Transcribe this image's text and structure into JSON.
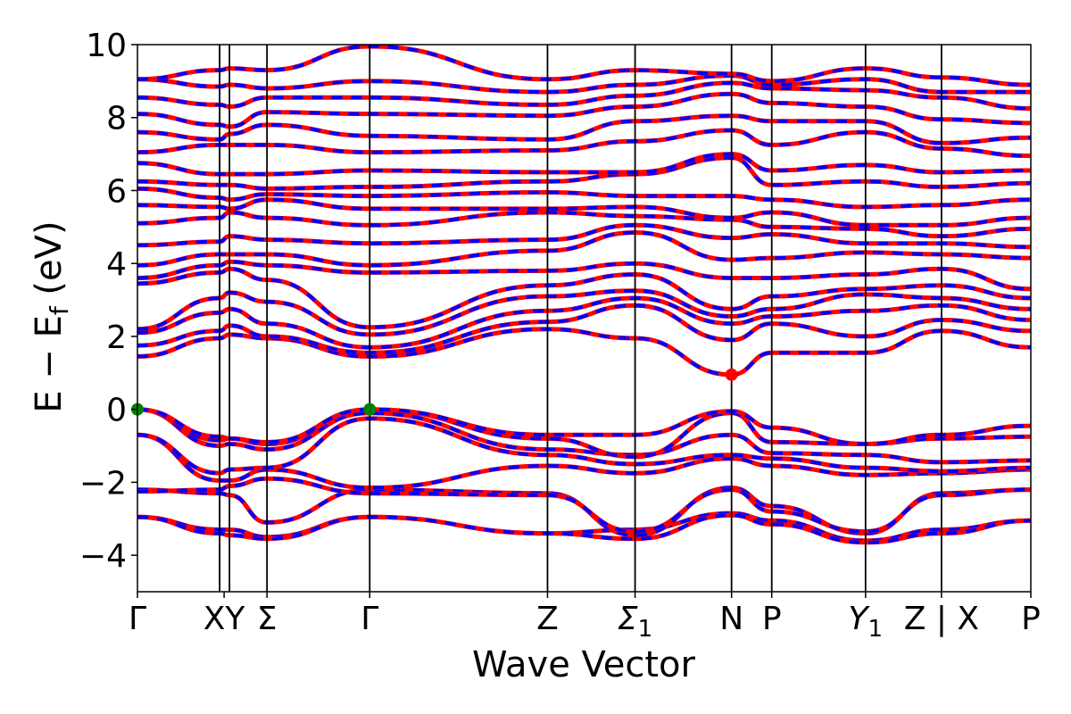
{
  "chart_data": {
    "type": "line",
    "xlabel": "Wave Vector",
    "ylabel": "E − E",
    "ylabel_sub": "f",
    "ylabel_unit": " (eV)",
    "ylim": [
      -5,
      10
    ],
    "yticks": [
      -4,
      -2,
      0,
      2,
      4,
      6,
      8,
      10
    ],
    "ytick_labels": [
      "−4",
      "−2",
      "0",
      "2",
      "4",
      "6",
      "8",
      "10"
    ],
    "kpoint_positions": [
      0,
      0.092,
      0.103,
      0.145,
      0.26,
      0.459,
      0.557,
      0.665,
      0.71,
      0.815,
      0.9,
      1.0
    ],
    "kpoint_ticks": [
      {
        "x": 0,
        "label": "Γ"
      },
      {
        "x": 0.097,
        "label": "XY"
      },
      {
        "x": 0.145,
        "label": "Σ"
      },
      {
        "x": 0.26,
        "label": "Γ"
      },
      {
        "x": 0.459,
        "label": "Z"
      },
      {
        "x": 0.557,
        "label": "Σ",
        "sub": "1"
      },
      {
        "x": 0.665,
        "label": "N"
      },
      {
        "x": 0.71,
        "label": "P"
      },
      {
        "x": 0.815,
        "label": "Y",
        "sub": "1"
      },
      {
        "x": 0.9,
        "label": "Z | X"
      },
      {
        "x": 1.0,
        "label": "P"
      }
    ],
    "colors": {
      "spin_up": "#ff0000",
      "spin_down": "#0000ff",
      "vbm": "#008000",
      "cbm": "#ff0000"
    },
    "markers": [
      {
        "name": "VBM",
        "x": 0.0,
        "y": 0.0,
        "color": "#008000"
      },
      {
        "name": "VBM",
        "x": 0.26,
        "y": 0.0,
        "color": "#008000"
      },
      {
        "name": "CBM",
        "x": 0.665,
        "y": 0.95,
        "color": "#ff0000"
      }
    ],
    "grid": false,
    "bands": [
      [
        -2.95,
        -3.3,
        -3.3,
        -3.5,
        -2.95,
        -3.4,
        -3.3,
        -2.85,
        -3.05,
        -3.6,
        -3.3,
        -3.05
      ],
      [
        -2.95,
        -3.4,
        -3.45,
        -3.55,
        -2.95,
        -3.4,
        -3.55,
        -2.9,
        -3.15,
        -3.65,
        -3.4,
        -3.05
      ],
      [
        -2.2,
        -2.3,
        -2.35,
        -3.1,
        -2.2,
        -2.3,
        -3.45,
        -2.15,
        -2.65,
        -3.4,
        -2.3,
        -2.2
      ],
      [
        -2.25,
        -2.2,
        -2.1,
        -1.9,
        -2.3,
        -2.35,
        -3.35,
        -2.2,
        -2.8,
        -3.35,
        -2.35,
        -2.2
      ],
      [
        -0.7,
        -1.95,
        -1.95,
        -1.65,
        -2.15,
        -1.55,
        -1.75,
        -1.35,
        -1.55,
        -1.8,
        -1.75,
        -1.65
      ],
      [
        -0.7,
        -1.75,
        -1.65,
        -1.6,
        -0.25,
        -1.25,
        -1.5,
        -1.25,
        -1.35,
        -1.6,
        -1.7,
        -1.6
      ],
      [
        0.0,
        -1.0,
        -0.95,
        -1.1,
        -0.1,
        -1.1,
        -1.25,
        -0.7,
        -1.2,
        -1.25,
        -1.45,
        -1.4
      ],
      [
        0.0,
        -0.85,
        -0.8,
        -0.95,
        0.0,
        -0.8,
        -1.3,
        -0.1,
        -0.9,
        -0.95,
        -0.8,
        -0.75
      ],
      [
        0.0,
        -0.75,
        -0.8,
        -0.9,
        0.0,
        -0.7,
        -0.7,
        -0.05,
        -0.5,
        -0.95,
        -0.7,
        -0.45
      ],
      [
        1.45,
        1.95,
        2.05,
        1.95,
        1.45,
        2.2,
        1.95,
        0.95,
        1.55,
        1.55,
        2.15,
        1.7
      ],
      [
        1.75,
        2.15,
        2.3,
        2.0,
        1.55,
        2.4,
        2.85,
        1.9,
        2.35,
        2.0,
        2.45,
        2.15
      ],
      [
        2.1,
        2.65,
        2.75,
        2.35,
        1.7,
        2.7,
        3.05,
        2.35,
        2.55,
        2.7,
        2.85,
        2.45
      ],
      [
        2.2,
        3.05,
        3.2,
        2.95,
        2.05,
        3.1,
        3.25,
        2.55,
        2.75,
        3.15,
        3.05,
        2.75
      ],
      [
        3.45,
        3.75,
        3.85,
        3.55,
        2.25,
        3.4,
        3.7,
        2.75,
        3.1,
        3.3,
        3.4,
        3.05
      ],
      [
        3.6,
        3.95,
        4.05,
        3.95,
        3.75,
        3.8,
        4.0,
        3.6,
        3.6,
        3.7,
        3.85,
        3.3
      ],
      [
        3.95,
        4.25,
        4.25,
        4.25,
        3.95,
        4.35,
        4.85,
        4.1,
        4.15,
        4.3,
        4.25,
        4.15
      ],
      [
        4.5,
        4.6,
        4.75,
        4.65,
        4.55,
        4.65,
        5.05,
        4.7,
        4.8,
        4.55,
        4.55,
        4.45
      ],
      [
        5.1,
        5.25,
        5.4,
        5.25,
        5.05,
        5.4,
        5.3,
        5.2,
        5.0,
        4.95,
        4.75,
        4.95
      ],
      [
        5.6,
        5.55,
        5.5,
        5.75,
        5.5,
        5.5,
        5.55,
        5.25,
        5.4,
        5.05,
        5.05,
        5.25
      ],
      [
        6.05,
        5.8,
        5.75,
        5.9,
        5.85,
        5.95,
        5.85,
        5.85,
        5.75,
        5.55,
        5.6,
        5.75
      ],
      [
        6.25,
        6.15,
        6.15,
        6.05,
        6.1,
        6.25,
        6.45,
        6.9,
        6.15,
        6.25,
        6.1,
        6.2
      ],
      [
        6.75,
        6.45,
        6.45,
        6.45,
        6.55,
        6.5,
        6.5,
        7.0,
        6.55,
        6.7,
        6.5,
        6.55
      ],
      [
        7.05,
        7.25,
        7.25,
        7.25,
        7.05,
        7.1,
        7.35,
        7.65,
        7.25,
        7.6,
        7.15,
        6.95
      ],
      [
        7.6,
        7.4,
        7.55,
        7.8,
        7.5,
        7.4,
        7.9,
        8.05,
        7.9,
        7.9,
        7.3,
        7.45
      ],
      [
        8.1,
        7.8,
        7.75,
        8.15,
        8.1,
        8.05,
        8.3,
        8.65,
        8.4,
        8.3,
        7.95,
        7.85
      ],
      [
        8.55,
        8.35,
        8.3,
        8.55,
        8.55,
        8.35,
        8.6,
        8.95,
        8.8,
        8.75,
        8.55,
        8.25
      ],
      [
        9.05,
        8.85,
        8.9,
        8.8,
        9.0,
        8.7,
        8.9,
        9.15,
        8.9,
        9.05,
        8.7,
        8.7
      ],
      [
        9.05,
        9.3,
        9.35,
        9.3,
        9.95,
        9.05,
        9.3,
        9.2,
        9.0,
        9.35,
        9.1,
        8.9
      ]
    ]
  }
}
